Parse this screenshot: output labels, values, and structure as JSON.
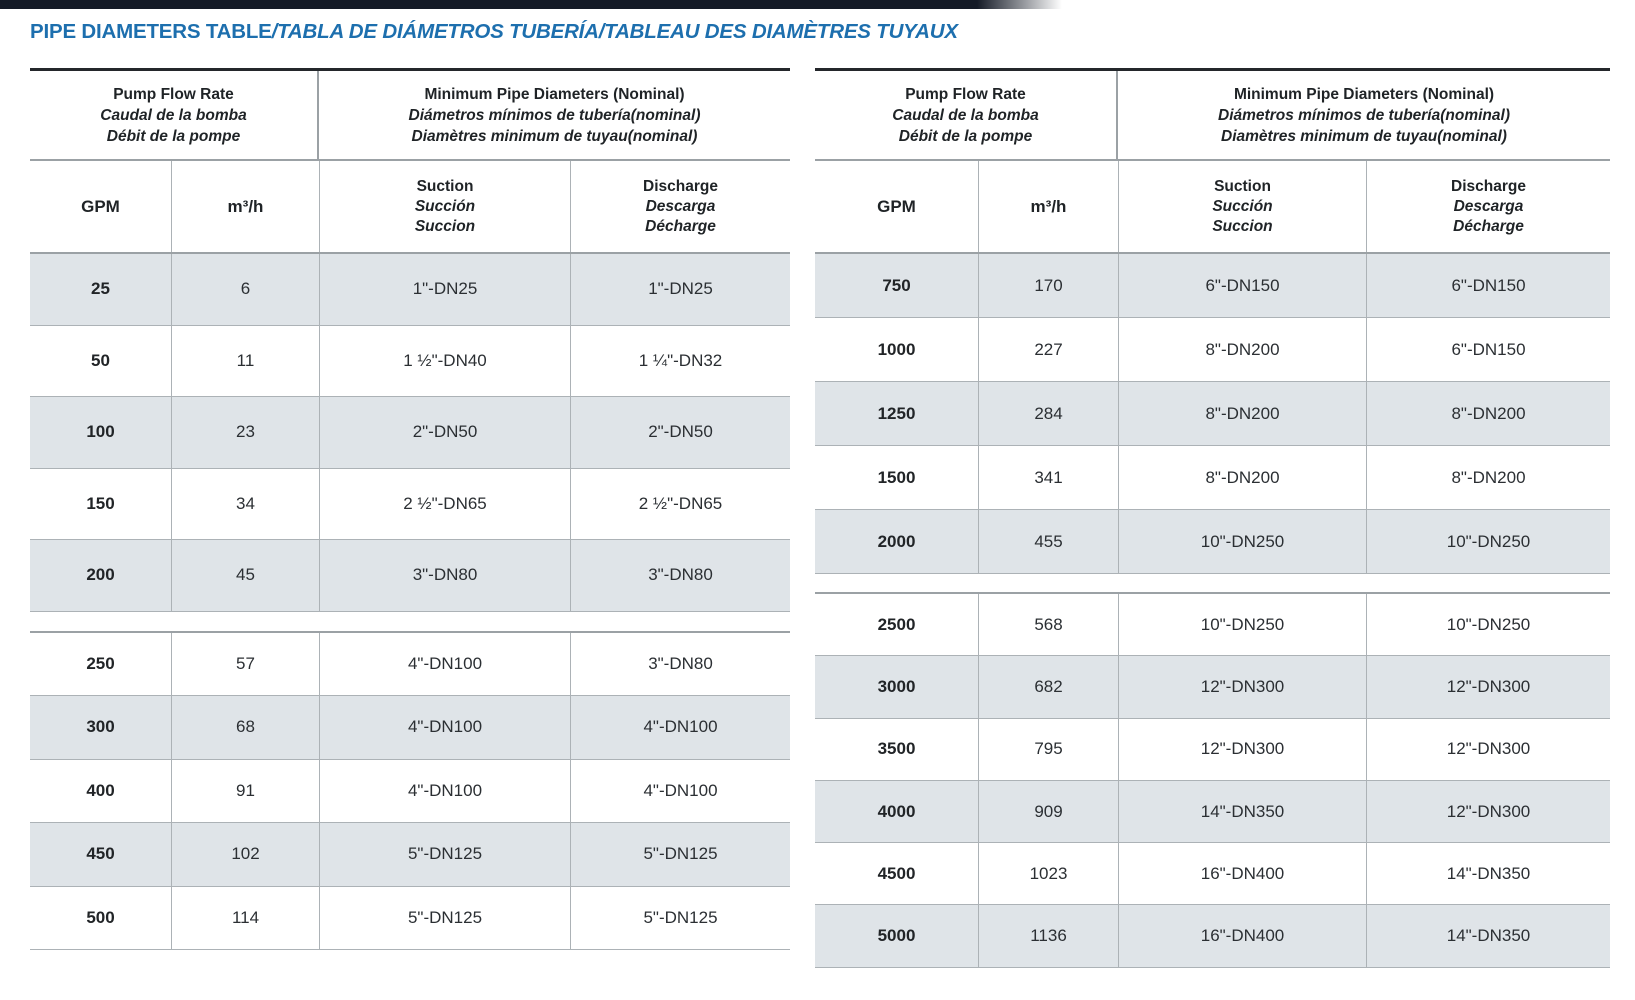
{
  "title": {
    "en": "PIPE DIAMETERS TABLE",
    "rest": "/TABLA DE DIÁMETROS TUBERÍA/TABLEAU DES DIAMÈTRES TUYAUX"
  },
  "header": {
    "flow_group": [
      "Pump Flow Rate",
      "Caudal de la bomba",
      "Débit de la pompe"
    ],
    "diameter_group": [
      "Minimum Pipe Diameters (Nominal)",
      "Diámetros mínimos de tubería(nominal)",
      "Diamètres minimum de tuyau(nominal)"
    ],
    "col_gpm": "GPM",
    "col_m3h": "m³/h",
    "col_suction": [
      "Suction",
      "Succión",
      "Succion"
    ],
    "col_discharge": [
      "Discharge",
      "Descarga",
      "Décharge"
    ]
  },
  "left_table": {
    "sections": [
      {
        "first_row_shaded": true,
        "rows": [
          {
            "gpm": "25",
            "m3h": "6",
            "suction": "1\"-DN25",
            "discharge": "1\"-DN25"
          },
          {
            "gpm": "50",
            "m3h": "11",
            "suction": "1 ½\"-DN40",
            "discharge": "1 ¼\"-DN32"
          },
          {
            "gpm": "100",
            "m3h": "23",
            "suction": "2\"-DN50",
            "discharge": "2\"-DN50"
          },
          {
            "gpm": "150",
            "m3h": "34",
            "suction": "2 ½\"-DN65",
            "discharge": "2 ½\"-DN65"
          },
          {
            "gpm": "200",
            "m3h": "45",
            "suction": "3\"-DN80",
            "discharge": "3\"-DN80"
          }
        ]
      },
      {
        "first_row_shaded": false,
        "rows": [
          {
            "gpm": "250",
            "m3h": "57",
            "suction": "4\"-DN100",
            "discharge": "3\"-DN80"
          },
          {
            "gpm": "300",
            "m3h": "68",
            "suction": "4\"-DN100",
            "discharge": "4\"-DN100"
          },
          {
            "gpm": "400",
            "m3h": "91",
            "suction": "4\"-DN100",
            "discharge": "4\"-DN100"
          },
          {
            "gpm": "450",
            "m3h": "102",
            "suction": "5\"-DN125",
            "discharge": "5\"-DN125"
          },
          {
            "gpm": "500",
            "m3h": "114",
            "suction": "5\"-DN125",
            "discharge": "5\"-DN125"
          }
        ]
      }
    ]
  },
  "right_table": {
    "sections": [
      {
        "first_row_shaded": true,
        "rows": [
          {
            "gpm": "750",
            "m3h": "170",
            "suction": "6\"-DN150",
            "discharge": "6\"-DN150"
          },
          {
            "gpm": "1000",
            "m3h": "227",
            "suction": "8\"-DN200",
            "discharge": "6\"-DN150"
          },
          {
            "gpm": "1250",
            "m3h": "284",
            "suction": "8\"-DN200",
            "discharge": "8\"-DN200"
          },
          {
            "gpm": "1500",
            "m3h": "341",
            "suction": "8\"-DN200",
            "discharge": "8\"-DN200"
          },
          {
            "gpm": "2000",
            "m3h": "455",
            "suction": "10\"-DN250",
            "discharge": "10\"-DN250"
          }
        ]
      },
      {
        "first_row_shaded": false,
        "rows": [
          {
            "gpm": "2500",
            "m3h": "568",
            "suction": "10\"-DN250",
            "discharge": "10\"-DN250"
          },
          {
            "gpm": "3000",
            "m3h": "682",
            "suction": "12\"-DN300",
            "discharge": "12\"-DN300"
          },
          {
            "gpm": "3500",
            "m3h": "795",
            "suction": "12\"-DN300",
            "discharge": "12\"-DN300"
          },
          {
            "gpm": "4000",
            "m3h": "909",
            "suction": "14\"-DN350",
            "discharge": "12\"-DN300"
          },
          {
            "gpm": "4500",
            "m3h": "1023",
            "suction": "16\"-DN400",
            "discharge": "14\"-DN350"
          },
          {
            "gpm": "5000",
            "m3h": "1136",
            "suction": "16\"-DN400",
            "discharge": "14\"-DN350"
          }
        ]
      }
    ]
  },
  "colors": {
    "accent_blue": "#1d6fae",
    "row_shade": "#dfe4e8",
    "line_gray": "#9ba1a5",
    "top_bar": "#151b27"
  }
}
